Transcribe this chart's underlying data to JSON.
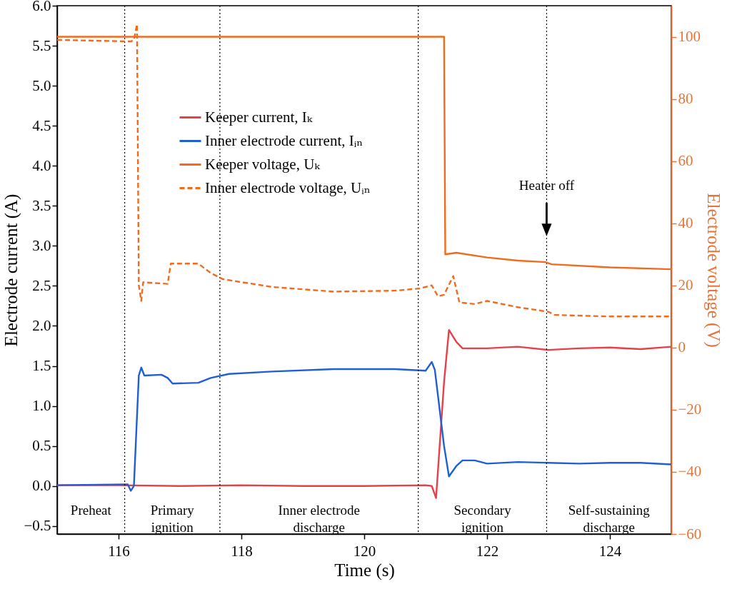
{
  "chart_data": {
    "type": "line",
    "xlabel": "Time (s)",
    "ylabel": "Electrode current (A)",
    "y2label": "Electrode voltage (V)",
    "xlim": [
      115,
      125
    ],
    "xticks": [
      116,
      118,
      120,
      122,
      124
    ],
    "ylim": [
      -0.6,
      6.0
    ],
    "yticks": [
      -0.5,
      {
        "value": 0,
        "label": "0.0"
      },
      0.5,
      {
        "value": 1,
        "label": "1.0"
      },
      1.5,
      {
        "value": 2,
        "label": "2.0"
      },
      2.5,
      {
        "value": 3,
        "label": "3.0"
      },
      3.5,
      {
        "value": 4,
        "label": "4.0"
      },
      4.5,
      {
        "value": 5,
        "label": "5.0"
      },
      5.5,
      {
        "value": 6,
        "label": "6.0"
      }
    ],
    "y2lim": [
      -60,
      110
    ],
    "y2ticks": [
      -60,
      -40,
      -20,
      0,
      20,
      40,
      60,
      80,
      100
    ],
    "grid": false,
    "legend": "top",
    "marker": "none",
    "series": [
      {
        "name": "Keeper current, Iₖ",
        "color": "#e8404a",
        "line_style": "solid",
        "x": [
          115,
          116,
          117,
          118,
          119,
          120,
          121,
          121.1,
          121.17,
          121.3,
          121.38,
          121.5,
          121.6,
          122,
          122.5,
          123,
          123.5,
          124,
          124.5,
          125
        ],
        "values": [
          0.01,
          0.01,
          0.0,
          0.01,
          0.0,
          0.0,
          0.01,
          0.0,
          -0.15,
          1.3,
          1.95,
          1.8,
          1.72,
          1.72,
          1.74,
          1.7,
          1.72,
          1.73,
          1.71,
          1.74
        ]
      },
      {
        "name": "Inner electrode current, Iᵢₙ",
        "color": "#1f5fd6",
        "line_style": "solid",
        "x": [
          115,
          116.15,
          116.2,
          116.25,
          116.33,
          116.37,
          116.42,
          116.7,
          116.8,
          116.88,
          117.3,
          117.5,
          117.8,
          118.5,
          119.5,
          120.5,
          121.0,
          121.1,
          121.15,
          121.3,
          121.38,
          121.5,
          121.6,
          121.8,
          122,
          122.5,
          123,
          123.5,
          124,
          124.5,
          125
        ],
        "values": [
          0.01,
          0.02,
          -0.06,
          0.0,
          1.38,
          1.48,
          1.38,
          1.39,
          1.35,
          1.28,
          1.29,
          1.35,
          1.4,
          1.43,
          1.46,
          1.46,
          1.44,
          1.55,
          1.45,
          0.5,
          0.12,
          0.25,
          0.32,
          0.32,
          0.28,
          0.3,
          0.29,
          0.28,
          0.29,
          0.29,
          0.27
        ]
      },
      {
        "name": "Keeper voltage, Uₖ",
        "color": "#f26b1d",
        "line_style": "solid",
        "axis": "y2",
        "x": [
          115,
          116.3,
          121.3,
          121.32,
          121.5,
          122,
          122.5,
          122.95,
          123.05,
          124,
          125
        ],
        "values": [
          100,
          100,
          100,
          30,
          30.5,
          29,
          28,
          27.5,
          26.8,
          25.8,
          25.2
        ]
      },
      {
        "name": "Inner electrode voltage, Uᵢₙ",
        "color": "#f26b1d",
        "line_style": "dashed",
        "axis": "y2",
        "x": [
          115,
          116.2,
          116.25,
          116.3,
          116.33,
          116.37,
          116.4,
          116.8,
          116.85,
          117.3,
          117.5,
          117.7,
          118.5,
          119.5,
          120.5,
          120.9,
          121.1,
          121.2,
          121.3,
          121.45,
          121.55,
          121.8,
          122,
          122.5,
          123,
          123.1,
          124,
          125
        ],
        "values": [
          99,
          98.5,
          99,
          104,
          20,
          15,
          21,
          20.5,
          27,
          27,
          24,
          22,
          19.5,
          18,
          18.3,
          19,
          20,
          16.5,
          17,
          23,
          14.5,
          14,
          15,
          13,
          11.5,
          10.5,
          10,
          10
        ]
      }
    ],
    "ref_lines": [
      {
        "axis": "x",
        "value": 116.1,
        "line_style": "dotted",
        "color": "#000000"
      },
      {
        "axis": "x",
        "value": 117.65,
        "line_style": "dotted",
        "color": "#000000"
      },
      {
        "axis": "x",
        "value": 120.88,
        "line_style": "dotted",
        "color": "#000000"
      },
      {
        "axis": "x",
        "value": 122.97,
        "line_style": "dotted",
        "color": "#000000"
      }
    ],
    "annotations": [
      "Preheat",
      "Primary\nignition",
      "Inner electrode\ndischarge",
      "Secondary\nignition",
      "Self-sustaining\ndischarge",
      {
        "text": "Heater off",
        "x": 122.97,
        "y": 3.75
      }
    ]
  }
}
